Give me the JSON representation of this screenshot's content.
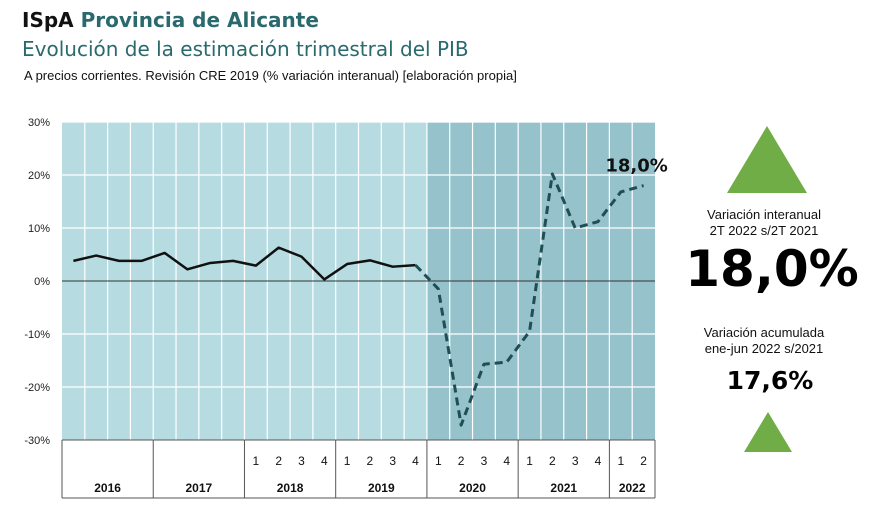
{
  "header": {
    "brand": "ISpA",
    "title": "Provincia de Alicante",
    "heading": "Evolución de la estimación trimestral del PIB",
    "subtitle": "A precios corrientes. Revisión CRE 2019 (% variación interanual) [elaboración propia]"
  },
  "side": {
    "interanual_label_1": "Variación interanual",
    "interanual_label_2": "2T 2022 s/2T 2021",
    "interanual_value": "18,0%",
    "acumulada_label_1": "Variación acumulada",
    "acumulada_label_2": "ene-jun 2022 s/2021",
    "acumulada_value": "17,6%"
  },
  "colors": {
    "plot_background": "#b6dce2",
    "shaded_background": "#96c2cc",
    "solid_line": "#111111",
    "dashed_line": "#1f4e55",
    "triangle": "#70ad47",
    "title": "#2a6a6e"
  },
  "chart_data": {
    "type": "line",
    "title": "Evolución de la estimación trimestral del PIB",
    "ylim": [
      -30,
      30
    ],
    "yticks": [
      30,
      20,
      10,
      0,
      -10,
      -20,
      -30
    ],
    "ytick_labels": [
      "30%",
      "20%",
      "10%",
      "0%",
      "-10%",
      "-20%",
      "-30%"
    ],
    "grid": true,
    "shaded_from_index": 16,
    "years": [
      {
        "label": "2016",
        "quarters": 4,
        "show_quarters": false
      },
      {
        "label": "2017",
        "quarters": 4,
        "show_quarters": false
      },
      {
        "label": "2018",
        "quarters": 4,
        "show_quarters": true
      },
      {
        "label": "2019",
        "quarters": 4,
        "show_quarters": true
      },
      {
        "label": "2020",
        "quarters": 4,
        "show_quarters": true
      },
      {
        "label": "2021",
        "quarters": 4,
        "show_quarters": true
      },
      {
        "label": "2022",
        "quarters": 2,
        "show_quarters": true
      }
    ],
    "quarter_labels": [
      "1",
      "2",
      "3",
      "4"
    ],
    "values": [
      3.8,
      4.8,
      3.8,
      3.8,
      5.3,
      2.2,
      3.4,
      3.8,
      2.9,
      6.3,
      4.6,
      0.3,
      3.2,
      3.9,
      2.7,
      3.0,
      -1.5,
      -27.2,
      -15.7,
      -15.3,
      -9.5,
      20.2,
      10.0,
      11.2,
      16.8,
      18.0
    ],
    "solid_until_index": 15,
    "annotation": {
      "index": 25,
      "text": "18,0%"
    }
  }
}
